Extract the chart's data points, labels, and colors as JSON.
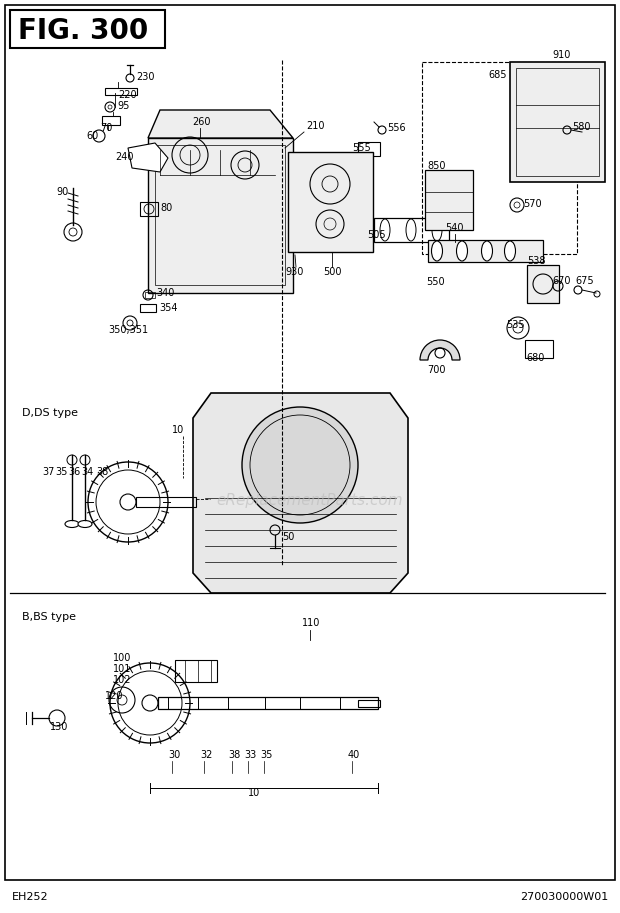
{
  "title": "FIG. 300",
  "fig_id": "EH252",
  "part_number": "270030000W01",
  "bg_color": "#ffffff",
  "border_color": "#000000",
  "watermark": "eReplacementParts.com"
}
